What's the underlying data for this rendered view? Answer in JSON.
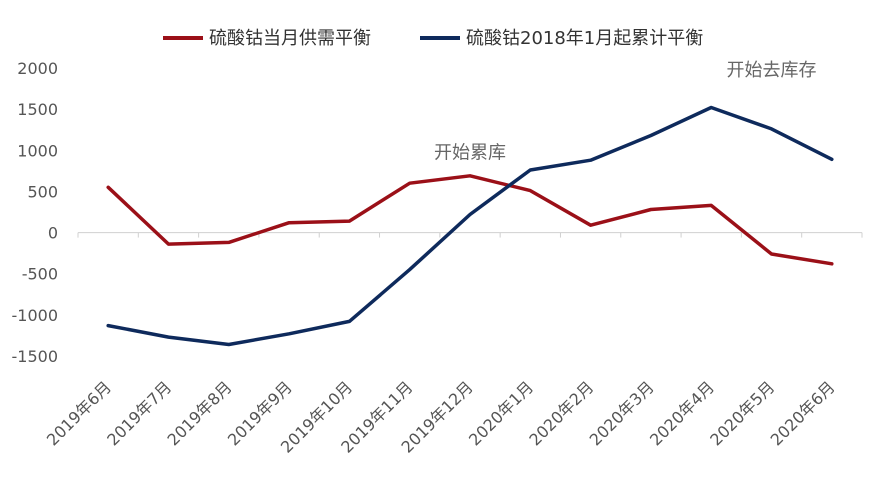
{
  "chart_data": {
    "type": "line",
    "title": "",
    "xlabel": "",
    "ylabel": "",
    "categories": [
      "2019年6月",
      "2019年7月",
      "2019年8月",
      "2019年9月",
      "2019年10月",
      "2019年11月",
      "2019年12月",
      "2020年1月",
      "2020年2月",
      "2020年3月",
      "2020年4月",
      "2020年5月",
      "2020年6月"
    ],
    "ylim": [
      -1500,
      2000
    ],
    "yticks": [
      2000,
      1500,
      1000,
      500,
      0,
      -500,
      -1000,
      -1500
    ],
    "ytick_labels": [
      "2000",
      "1500",
      "1000",
      "500",
      "0",
      "-500",
      "-1000",
      "-1500"
    ],
    "grid": false,
    "legend_position": "top",
    "series": [
      {
        "name": "硫酸钴当月供需平衡",
        "color": "#9B1018",
        "values": [
          550,
          -140,
          -120,
          120,
          140,
          600,
          690,
          510,
          90,
          280,
          330,
          -260,
          -380
        ]
      },
      {
        "name": "硫酸钴2018年1月起累计平衡",
        "color": "#0E2A5C",
        "values": [
          -1130,
          -1270,
          -1360,
          -1230,
          -1080,
          -450,
          220,
          760,
          880,
          1180,
          1520,
          1260,
          890
        ]
      }
    ],
    "annotations": [
      {
        "text": "开始累库",
        "x_category": "2019年12月",
        "y": 900
      },
      {
        "text": "开始去库存",
        "x_category": "2020年5月",
        "y": 1900
      }
    ]
  }
}
